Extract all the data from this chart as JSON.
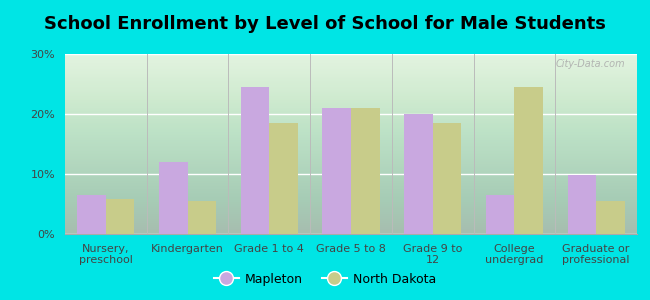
{
  "title": "School Enrollment by Level of School for Male Students",
  "categories": [
    "Nursery,\npreschool",
    "Kindergarten",
    "Grade 1 to 4",
    "Grade 5 to 8",
    "Grade 9 to\n12",
    "College\nundergrad",
    "Graduate or\nprofessional"
  ],
  "mapleton_values": [
    6.5,
    12.0,
    24.5,
    21.0,
    20.0,
    6.5,
    9.8
  ],
  "nd_values": [
    5.8,
    5.5,
    18.5,
    21.0,
    18.5,
    24.5,
    5.5
  ],
  "mapleton_color": "#c9a8e0",
  "nd_color": "#c8cc8a",
  "background_color": "#00e5e5",
  "ylim": [
    0,
    30
  ],
  "yticks": [
    0,
    10,
    20,
    30
  ],
  "ytick_labels": [
    "0%",
    "10%",
    "20%",
    "30%"
  ],
  "legend_label_mapleton": "Mapleton",
  "legend_label_nd": "North Dakota",
  "bar_width": 0.35,
  "title_fontsize": 13,
  "tick_fontsize": 8,
  "legend_fontsize": 9,
  "watermark": "City-Data.com"
}
